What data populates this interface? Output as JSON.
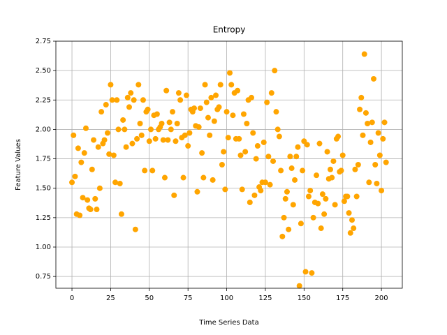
{
  "chart_data": {
    "type": "scatter",
    "title": "Entropy",
    "x_label": "Time Series Data",
    "y_label": "Feature Values",
    "color": "#ffa500",
    "grid": true,
    "xlim": [
      -10.4,
      213.5
    ],
    "ylim": [
      0.65,
      2.75
    ],
    "xticks": [
      0,
      25,
      50,
      75,
      100,
      125,
      150,
      175,
      200
    ],
    "yticks": [
      0.75,
      {
        "value": 1.0,
        "label": "1.00"
      },
      1.25,
      {
        "value": 1.5,
        "label": "1.50"
      },
      1.75,
      {
        "value": 2.0,
        "label": "2.00"
      },
      2.25,
      {
        "value": 2.5,
        "label": "2.50"
      },
      2.75
    ],
    "x": [
      0,
      1,
      2,
      3,
      4,
      5,
      6,
      7,
      8,
      9,
      10,
      11,
      12,
      13,
      14,
      15,
      16,
      17,
      18,
      19,
      20,
      21,
      22,
      23,
      24,
      25,
      26,
      27,
      28,
      29,
      30,
      31,
      32,
      33,
      34,
      35,
      36,
      37,
      38,
      39,
      40,
      41,
      42,
      43,
      44,
      45,
      46,
      47,
      48,
      49,
      50,
      51,
      52,
      53,
      54,
      55,
      56,
      57,
      58,
      59,
      60,
      61,
      62,
      63,
      64,
      65,
      66,
      67,
      68,
      69,
      70,
      71,
      72,
      73,
      74,
      75,
      76,
      77,
      78,
      79,
      80,
      81,
      82,
      83,
      84,
      85,
      86,
      87,
      88,
      89,
      90,
      91,
      92,
      93,
      94,
      95,
      96,
      97,
      98,
      99,
      100,
      101,
      102,
      103,
      104,
      105,
      106,
      107,
      108,
      109,
      110,
      111,
      112,
      113,
      114,
      115,
      116,
      117,
      118,
      119,
      120,
      121,
      122,
      123,
      124,
      125,
      126,
      127,
      128,
      129,
      130,
      131,
      132,
      133,
      134,
      135,
      136,
      137,
      138,
      139,
      140,
      141,
      142,
      143,
      144,
      145,
      146,
      147,
      148,
      149,
      150,
      151,
      152,
      153,
      154,
      155,
      156,
      157,
      158,
      159,
      160,
      161,
      162,
      163,
      164,
      165,
      166,
      167,
      168,
      169,
      170,
      171,
      172,
      173,
      174,
      175,
      176,
      177,
      178,
      179,
      180,
      181,
      182,
      183,
      184,
      185,
      186,
      187,
      188,
      189,
      190,
      191,
      192,
      193,
      194,
      195,
      196,
      197,
      198,
      199,
      200,
      201,
      202,
      203
    ],
    "values": [
      1.55,
      1.95,
      1.6,
      1.28,
      1.84,
      1.27,
      1.72,
      1.42,
      1.8,
      2.01,
      1.4,
      1.33,
      1.32,
      1.66,
      1.91,
      1.41,
      1.32,
      1.85,
      1.5,
      2.15,
      1.88,
      1.91,
      2.21,
      1.97,
      1.79,
      2.38,
      2.25,
      1.78,
      1.55,
      2.25,
      2.0,
      1.54,
      1.28,
      2.08,
      2.0,
      1.85,
      2.27,
      2.19,
      2.31,
      1.88,
      2.25,
      1.15,
      1.92,
      2.38,
      2.05,
      1.95,
      2.25,
      1.65,
      2.15,
      2.17,
      1.9,
      2.0,
      1.65,
      2.12,
      1.92,
      2.13,
      2.0,
      2.02,
      2.05,
      1.91,
      1.59,
      2.33,
      1.91,
      2.06,
      2.0,
      2.15,
      1.44,
      1.9,
      2.05,
      2.31,
      2.25,
      1.93,
      1.59,
      1.95,
      2.29,
      1.86,
      1.97,
      2.17,
      2.15,
      2.18,
      2.03,
      1.47,
      2.02,
      2.18,
      1.8,
      1.59,
      2.38,
      2.23,
      2.1,
      1.95,
      2.27,
      1.57,
      2.07,
      2.29,
      2.17,
      2.19,
      2.38,
      1.7,
      1.81,
      1.49,
      2.15,
      1.93,
      2.48,
      2.38,
      2.12,
      2.31,
      1.92,
      2.33,
      1.92,
      1.78,
      1.49,
      2.13,
      1.81,
      2.05,
      2.25,
      1.38,
      2.27,
      1.97,
      1.44,
      1.75,
      1.86,
      1.51,
      1.48,
      1.55,
      1.89,
      1.55,
      2.23,
      1.77,
      1.53,
      2.31,
      1.73,
      2.5,
      2.15,
      2.0,
      1.94,
      1.65,
      1.09,
      1.25,
      1.41,
      1.47,
      1.15,
      1.77,
      1.67,
      1.36,
      1.57,
      1.77,
      1.85,
      0.67,
      1.2,
      1.65,
      1.9,
      0.79,
      1.87,
      1.43,
      1.48,
      0.78,
      1.25,
      1.38,
      1.61,
      1.37,
      1.88,
      1.16,
      1.45,
      1.28,
      1.41,
      1.81,
      1.58,
      1.66,
      1.59,
      1.73,
      1.36,
      1.92,
      1.94,
      1.64,
      1.65,
      1.78,
      1.39,
      1.43,
      1.43,
      1.29,
      1.12,
      1.23,
      1.16,
      1.66,
      1.43,
      1.7,
      2.17,
      2.27,
      1.95,
      2.64,
      2.14,
      2.05,
      1.55,
      1.89,
      2.06,
      2.43,
      1.7,
      1.54,
      1.97,
      1.78,
      1.48,
      1.92,
      2.06,
      1.72
    ]
  }
}
